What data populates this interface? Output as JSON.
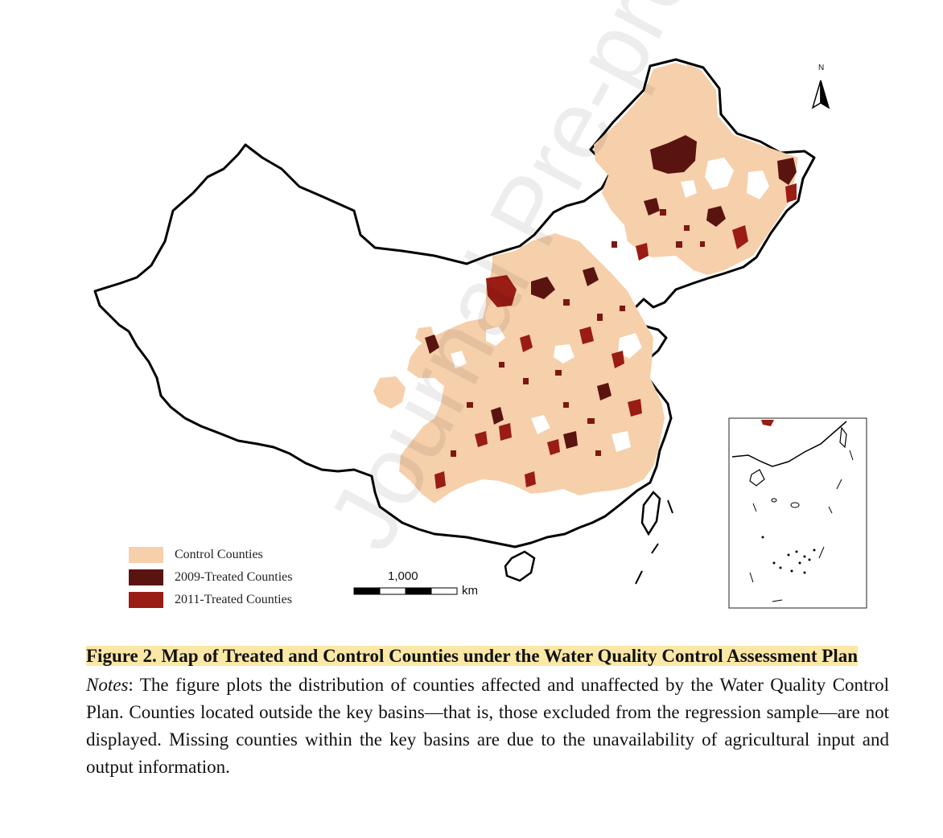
{
  "map": {
    "north_label": "N",
    "scale_value": "1,000",
    "scale_unit": "km"
  },
  "legend": {
    "items": [
      {
        "label": "Control Counties",
        "color": "#f6cfab"
      },
      {
        "label": "2009-Treated Counties",
        "color": "#5a1410"
      },
      {
        "label": "2011-Treated Counties",
        "color": "#991c15"
      }
    ]
  },
  "caption": {
    "title": "Figure 2. Map of Treated and Control Counties under the Water Quality Control Assessment Plan",
    "notes_label": "Notes",
    "notes_text": ": The figure plots the distribution of counties affected and unaffected by the Water Quality Control Plan. Counties located outside the key basins—that is, those excluded from the regression sample—are not displayed. Missing counties within the key basins are due to the unavailability of agricultural input and output information."
  },
  "watermark": "Journal Pre-proof"
}
